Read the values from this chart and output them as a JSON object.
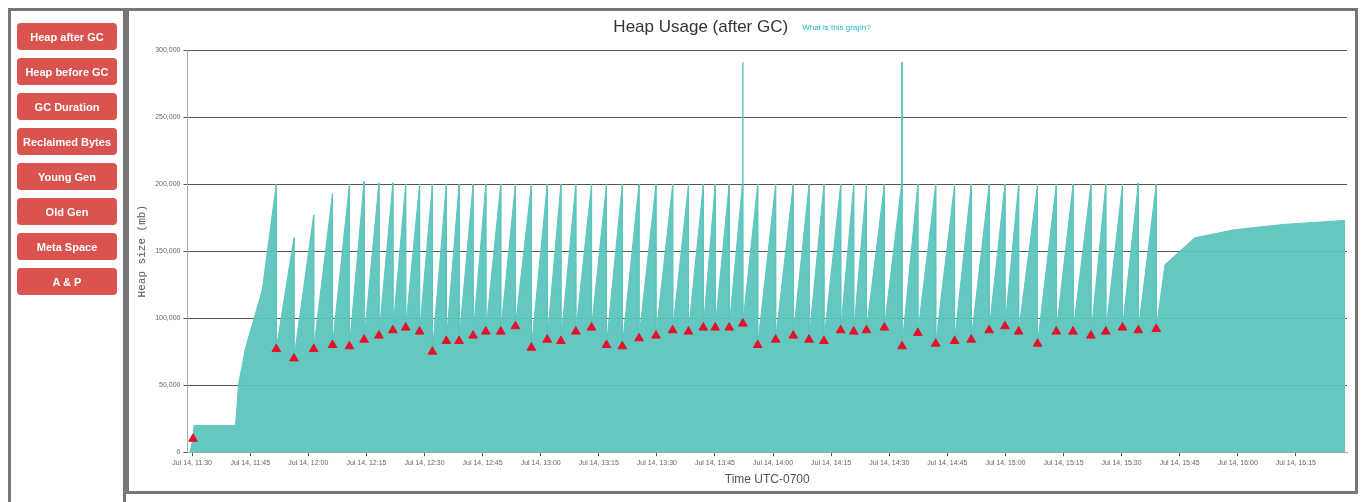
{
  "chart_data": {
    "type": "area",
    "title": "Heap Usage (after GC)",
    "xlabel": "Time UTC-0700",
    "ylabel": "Heap size (mb)",
    "annotations": [
      "What is this graph?",
      "Heap after GC",
      "Heap before GC",
      "GC Duration",
      "Reclaimed Bytes",
      "Young Gen",
      "Old Gen",
      "Meta Space",
      "A & P"
    ],
    "xlim": [
      "--07-14T11:28:48",
      "--07-14T16:28:12"
    ],
    "ylim": [
      0,
      300000
    ],
    "xticks": [
      {
        "value": "--07-14T11:30",
        "label": "Jul 14, 11:30"
      },
      {
        "value": "--07-14T11:45",
        "label": "Jul 14, 11:45"
      },
      {
        "value": "--07-14T12:00",
        "label": "Jul 14, 12:00"
      },
      {
        "value": "--07-14T12:15",
        "label": "Jul 14, 12:15"
      },
      {
        "value": "--07-14T12:30",
        "label": "Jul 14, 12:30"
      },
      {
        "value": "--07-14T12:45",
        "label": "Jul 14, 12:45"
      },
      {
        "value": "--07-14T13:00",
        "label": "Jul 14, 13:00"
      },
      {
        "value": "--07-14T13:15",
        "label": "Jul 14, 13:15"
      },
      {
        "value": "--07-14T13:30",
        "label": "Jul 14, 13:30"
      },
      {
        "value": "--07-14T13:45",
        "label": "Jul 14, 13:45"
      },
      {
        "value": "--07-14T14:00",
        "label": "Jul 14, 14:00"
      },
      {
        "value": "--07-14T14:15",
        "label": "Jul 14, 14:15"
      },
      {
        "value": "--07-14T14:30",
        "label": "Jul 14, 14:30"
      },
      {
        "value": "--07-14T14:45",
        "label": "Jul 14, 14:45"
      },
      {
        "value": "--07-14T15:00",
        "label": "Jul 14, 15:00"
      },
      {
        "value": "--07-14T15:15",
        "label": "Jul 14, 15:15"
      },
      {
        "value": "--07-14T15:30",
        "label": "Jul 14, 15:30"
      },
      {
        "value": "--07-14T15:45",
        "label": "Jul 14, 15:45"
      },
      {
        "value": "--07-14T16:00",
        "label": "Jul 14, 16:00"
      },
      {
        "value": "--07-14T16:15",
        "label": "Jul 14, 16:15"
      }
    ],
    "yticks": [
      {
        "value": 0,
        "label": "0"
      },
      {
        "value": 50000,
        "label": "50,000"
      },
      {
        "value": 100000,
        "label": "100,000"
      },
      {
        "value": 150000,
        "label": "150,000"
      },
      {
        "value": 200000,
        "label": "200,000"
      },
      {
        "value": 250000,
        "label": "250,000"
      },
      {
        "value": 300000,
        "label": "300,000"
      }
    ],
    "grid": "y",
    "series": [
      {
        "color": "#5cc5be",
        "marker": "none",
        "x": [
          "--07-14T11:29:28",
          "--07-14T11:30:14",
          "--07-14T11:30:29",
          "--07-14T11:41:13",
          "--07-14T11:42:00",
          "--07-14T11:43:48",
          "--07-14T11:48:07",
          "--07-14T11:51:43",
          "--07-14T11:51:43",
          "--07-14T11:56:17",
          "--07-14T11:56:17",
          "--07-14T12:01:23",
          "--07-14T12:01:23",
          "--07-14T12:06:14",
          "--07-14T12:06:14",
          "--07-14T12:10:37",
          "--07-14T12:10:37",
          "--07-14T12:14:24",
          "--07-14T12:14:24",
          "--07-14T12:18:14",
          "--07-14T12:18:14",
          "--07-14T12:21:50",
          "--07-14T12:21:50",
          "--07-14T12:25:08",
          "--07-14T12:25:08",
          "--07-14T12:28:44",
          "--07-14T12:28:44",
          "--07-14T12:32:02",
          "--07-14T12:32:02",
          "--07-14T12:35:38",
          "--07-14T12:35:38",
          "--07-14T12:38:56",
          "--07-14T12:38:56",
          "--07-14T12:42:32",
          "--07-14T12:42:32",
          "--07-14T12:45:50",
          "--07-14T12:45:50",
          "--07-14T12:49:41",
          "--07-14T12:49:41",
          "--07-14T12:53:28",
          "--07-14T12:53:28",
          "--07-14T12:57:36",
          "--07-14T12:57:36",
          "--07-14T13:01:41",
          "--07-14T13:01:41",
          "--07-14T13:05:13",
          "--07-14T13:05:13",
          "--07-14T13:09:04",
          "--07-14T13:09:04",
          "--07-14T13:13:08",
          "--07-14T13:13:08",
          "--07-14T13:16:59",
          "--07-14T13:16:59",
          "--07-14T13:21:04",
          "--07-14T13:21:04",
          "--07-14T13:25:23",
          "--07-14T13:25:23",
          "--07-14T13:29:46",
          "--07-14T13:29:46",
          "--07-14T13:34:05",
          "--07-14T13:34:05",
          "--07-14T13:38:10",
          "--07-14T13:38:10",
          "--07-14T13:42:00",
          "--07-14T13:42:00",
          "--07-14T13:45:04",
          "--07-14T13:45:04",
          "--07-14T13:48:40",
          "--07-14T13:48:40",
          "--07-14T13:52:05",
          "--07-14T13:52:12",
          "--07-14T13:52:12",
          "--07-14T13:56:02",
          "--07-14T13:56:02",
          "--07-14T14:00:40",
          "--07-14T14:00:40",
          "--07-14T14:05:13",
          "--07-14T14:05:13",
          "--07-14T14:09:18",
          "--07-14T14:09:18",
          "--07-14T14:13:08",
          "--07-14T14:13:08",
          "--07-14T14:17:28",
          "--07-14T14:17:28",
          "--07-14T14:20:49",
          "--07-14T14:20:49",
          "--07-14T14:24:07",
          "--07-14T14:24:07",
          "--07-14T14:28:44",
          "--07-14T14:28:44",
          "--07-14T14:33:11",
          "--07-14T14:33:18",
          "--07-14T14:33:18",
          "--07-14T14:37:23",
          "--07-14T14:37:23",
          "--07-14T14:42:00",
          "--07-14T14:42:00",
          "--07-14T14:46:52",
          "--07-14T14:46:52",
          "--07-14T14:51:11",
          "--07-14T14:51:11",
          "--07-14T14:55:48",
          "--07-14T14:55:48",
          "--07-14T14:59:53",
          "--07-14T14:59:53",
          "--07-14T15:03:25",
          "--07-14T15:03:25",
          "--07-14T15:08:17",
          "--07-14T15:08:17",
          "--07-14T15:13:08",
          "--07-14T15:13:08",
          "--07-14T15:17:28",
          "--07-14T15:17:28",
          "--07-14T15:22:05",
          "--07-14T15:22:05",
          "--07-14T15:25:55",
          "--07-14T15:25:55",
          "--07-14T15:30:14",
          "--07-14T15:30:14",
          "--07-14T15:34:19",
          "--07-14T15:34:19",
          "--07-14T15:38:56",
          "--07-14T15:38:56",
          "--07-14T15:41:13",
          "--07-14T15:48:54",
          "--07-14T15:59:06",
          "--07-14T16:11:53",
          "--07-14T16:27:43"
        ],
        "values": [
          0,
          10000,
          20000,
          20000,
          51000,
          78000,
          121000,
          200000,
          77000,
          160000,
          70000,
          177000,
          77000,
          193000,
          80000,
          200000,
          79000,
          202000,
          84000,
          201000,
          87000,
          201000,
          91000,
          200000,
          93000,
          200000,
          90000,
          200000,
          75000,
          200000,
          83000,
          200000,
          83000,
          200000,
          87000,
          200000,
          90000,
          200000,
          90000,
          200000,
          94000,
          200000,
          78000,
          200000,
          84000,
          200000,
          83000,
          200000,
          90000,
          200000,
          93000,
          200000,
          80000,
          200000,
          79000,
          200000,
          85000,
          200000,
          87000,
          200000,
          91000,
          200000,
          90000,
          200000,
          93000,
          200000,
          93000,
          200000,
          93000,
          200000,
          291000,
          96000,
          200000,
          80000,
          200000,
          84000,
          200000,
          87000,
          200000,
          84000,
          200000,
          83000,
          200000,
          91000,
          200000,
          90000,
          200000,
          91000,
          200000,
          93000,
          200000,
          291000,
          79000,
          200000,
          89000,
          200000,
          81000,
          200000,
          83000,
          200000,
          84000,
          200000,
          91000,
          200000,
          94000,
          200000,
          90000,
          200000,
          81000,
          200000,
          90000,
          200000,
          90000,
          200000,
          87000,
          200000,
          90000,
          200000,
          93000,
          201000,
          91000,
          200000,
          92000,
          140000,
          160000,
          166000,
          170000,
          173000
        ]
      },
      {
        "type": "scatter",
        "color": "#e3122a",
        "marker": "triangle",
        "x": [
          "--07-14T11:30:14",
          "--07-14T11:51:43",
          "--07-14T11:56:17",
          "--07-14T12:01:23",
          "--07-14T12:06:14",
          "--07-14T12:10:37",
          "--07-14T12:14:24",
          "--07-14T12:18:14",
          "--07-14T12:21:50",
          "--07-14T12:25:08",
          "--07-14T12:28:44",
          "--07-14T12:32:02",
          "--07-14T12:35:38",
          "--07-14T12:38:56",
          "--07-14T12:42:32",
          "--07-14T12:45:50",
          "--07-14T12:49:41",
          "--07-14T12:53:28",
          "--07-14T12:57:36",
          "--07-14T13:01:41",
          "--07-14T13:05:13",
          "--07-14T13:09:04",
          "--07-14T13:13:08",
          "--07-14T13:16:59",
          "--07-14T13:21:04",
          "--07-14T13:25:23",
          "--07-14T13:29:46",
          "--07-14T13:34:05",
          "--07-14T13:38:10",
          "--07-14T13:42:00",
          "--07-14T13:45:04",
          "--07-14T13:48:40",
          "--07-14T13:52:12",
          "--07-14T13:56:02",
          "--07-14T14:00:40",
          "--07-14T14:05:13",
          "--07-14T14:09:18",
          "--07-14T14:13:08",
          "--07-14T14:17:28",
          "--07-14T14:20:49",
          "--07-14T14:24:07",
          "--07-14T14:28:44",
          "--07-14T14:33:18",
          "--07-14T14:37:23",
          "--07-14T14:42:00",
          "--07-14T14:46:52",
          "--07-14T14:51:11",
          "--07-14T14:55:48",
          "--07-14T14:59:53",
          "--07-14T15:03:25",
          "--07-14T15:08:17",
          "--07-14T15:13:08",
          "--07-14T15:17:28",
          "--07-14T15:22:05",
          "--07-14T15:25:55",
          "--07-14T15:30:14",
          "--07-14T15:34:19",
          "--07-14T15:38:56"
        ],
        "values": [
          10000,
          77000,
          70000,
          77000,
          80000,
          79000,
          84000,
          87000,
          91000,
          93000,
          90000,
          75000,
          83000,
          83000,
          87000,
          90000,
          90000,
          94000,
          78000,
          84000,
          83000,
          90000,
          93000,
          80000,
          79000,
          85000,
          87000,
          91000,
          90000,
          93000,
          93000,
          93000,
          96000,
          80000,
          84000,
          87000,
          84000,
          83000,
          91000,
          90000,
          91000,
          93000,
          79000,
          89000,
          81000,
          83000,
          84000,
          91000,
          94000,
          90000,
          81000,
          90000,
          90000,
          87000,
          90000,
          93000,
          91000,
          92000
        ]
      }
    ]
  }
}
